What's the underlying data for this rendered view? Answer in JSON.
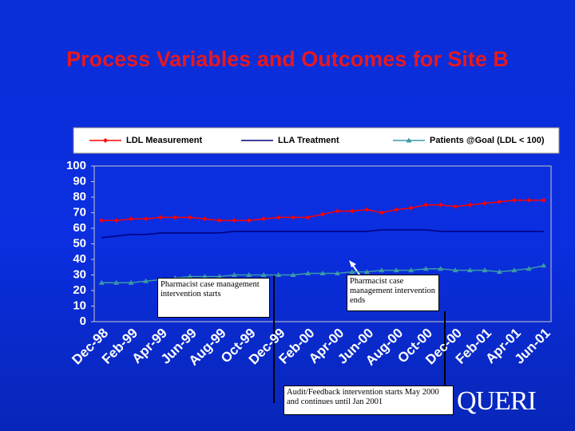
{
  "chart_data": {
    "type": "line",
    "title": "Process Variables and Outcomes for Site B",
    "categories": [
      "Dec-98",
      null,
      "Feb-99",
      null,
      "Apr-99",
      null,
      "Jun-99",
      null,
      "Aug-99",
      null,
      "Oct-99",
      null,
      "Dec-99",
      null,
      "Feb-00",
      null,
      "Apr-00",
      null,
      "Jun-00",
      null,
      "Aug-00",
      null,
      "Oct-00",
      null,
      "Dec-00",
      null,
      "Feb-01",
      null,
      "Apr-01",
      null,
      "Jun-01"
    ],
    "series": [
      {
        "name": "LDL Measurement",
        "color": "#ff0000",
        "marker": "diamond",
        "values": [
          65,
          65,
          66,
          66,
          67,
          67,
          67,
          66,
          65,
          65,
          65,
          66,
          67,
          67,
          67,
          69,
          71,
          71,
          72,
          70,
          72,
          73,
          75,
          75,
          74,
          75,
          76,
          77,
          78,
          78,
          78
        ]
      },
      {
        "name": "LLA Treatment",
        "color": "#00007a",
        "marker": "none",
        "values": [
          54,
          55,
          56,
          56,
          57,
          57,
          57,
          57,
          57,
          58,
          58,
          58,
          58,
          58,
          58,
          58,
          58,
          58,
          58,
          59,
          59,
          59,
          59,
          58,
          58,
          58,
          58,
          58,
          58,
          58,
          58
        ]
      },
      {
        "name": "Patients @Goal (LDL < 100)",
        "color": "#3a9aa6",
        "marker": "triangle",
        "values": [
          25,
          25,
          25,
          26,
          27,
          28,
          29,
          29,
          29,
          30,
          30,
          30,
          30,
          30,
          31,
          31,
          31,
          32,
          32,
          33,
          33,
          33,
          34,
          34,
          33,
          33,
          33,
          32,
          33,
          34,
          36
        ]
      }
    ],
    "ylim": [
      0,
      100
    ],
    "yticks": [
      0,
      10,
      20,
      30,
      40,
      50,
      60,
      70,
      80,
      90,
      100
    ],
    "annotations": [
      "Pharmacist case management intervention starts",
      "Pharmacist case management intervention ends",
      "Audit/Feedback intervention starts May 2000 and continues until Jan 2001"
    ],
    "logo": "QUERI"
  }
}
